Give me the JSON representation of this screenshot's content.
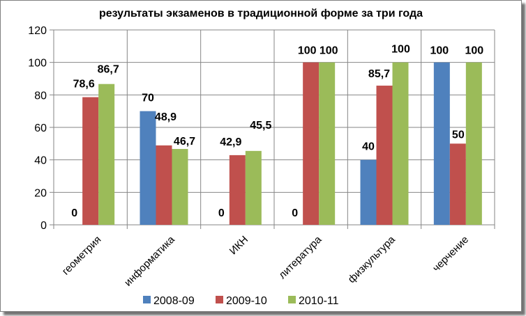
{
  "chart_data": {
    "type": "bar",
    "title": "результаты экзаменов в традиционной форме за три года",
    "xlabel": "",
    "ylabel": "",
    "ylim": [
      0,
      120
    ],
    "yticks": [
      "0",
      "20",
      "40",
      "60",
      "80",
      "100",
      "120"
    ],
    "grid": "horizontal",
    "legend": "bottom",
    "categories": [
      "геометрия",
      "информатика",
      "ИКН",
      "литература",
      "физкультура",
      "черчение"
    ],
    "series": [
      {
        "name": "2008-09",
        "color": "#4f81bd",
        "values": [
          0,
          70,
          0,
          0,
          40,
          100
        ],
        "labels": [
          "0",
          "70",
          "0",
          "0",
          "40",
          "100"
        ]
      },
      {
        "name": "2009-10",
        "color": "#c0504d",
        "values": [
          78.6,
          48.9,
          42.9,
          100,
          85.7,
          50
        ],
        "labels": [
          "78,6",
          "48,9",
          "42,9",
          "100",
          "85,7",
          "50"
        ]
      },
      {
        "name": "2010-11",
        "color": "#9bbb59",
        "values": [
          86.7,
          46.7,
          45.5,
          100,
          100,
          100
        ],
        "labels": [
          "86,7",
          "46,7",
          "45,5",
          "100",
          "100",
          "100"
        ]
      }
    ]
  }
}
